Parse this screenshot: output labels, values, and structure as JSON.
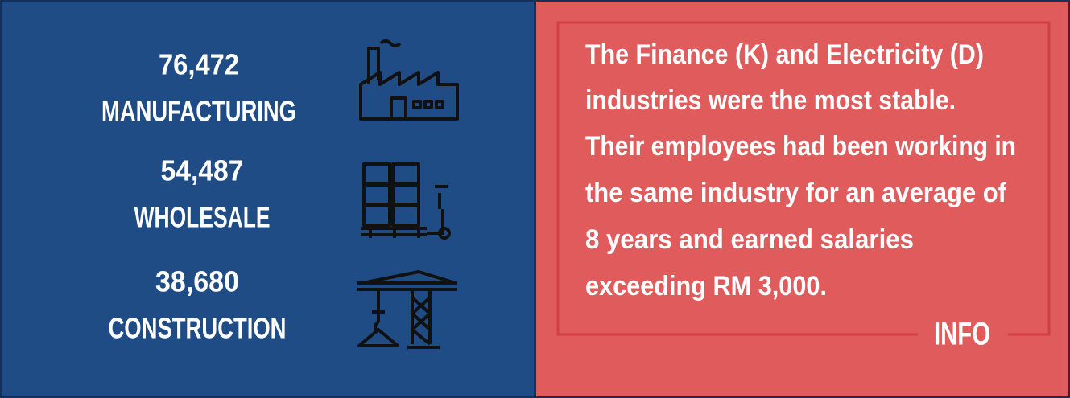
{
  "stats": [
    {
      "value": "76,472",
      "label": "MANUFACTURING"
    },
    {
      "value": "54,487",
      "label": "WHOLESALE"
    },
    {
      "value": "38,680",
      "label": "CONSTRUCTION"
    }
  ],
  "info": {
    "lines": [
      "The Finance (K) and Electricity (D)",
      "industries were the most stable.",
      "Their employees had been working in",
      "the same industry for an average of",
      "8 years and earned salaries",
      "exceeding RM 3,000."
    ],
    "tag": "INFO"
  }
}
